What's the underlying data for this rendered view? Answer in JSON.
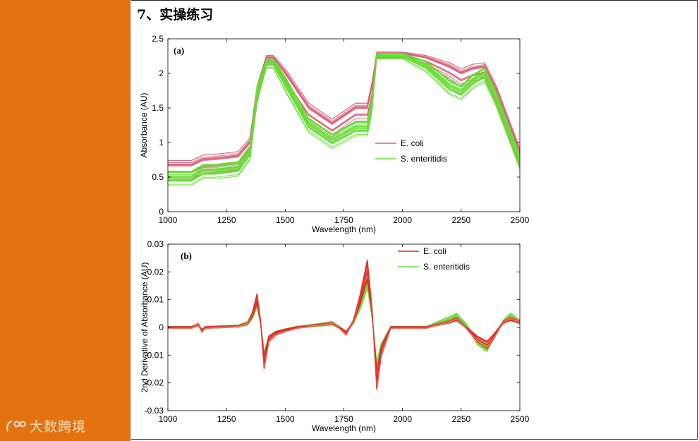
{
  "slide": {
    "title": "7、实操练习",
    "logo_text": "大数跨境",
    "sidebar_color": "#e3720f"
  },
  "chart_data": [
    {
      "type": "line",
      "panel_label": "(a)",
      "xlabel": "Wavelength (nm)",
      "ylabel": "Absorbance (AU)",
      "xlim": [
        1000,
        2500
      ],
      "ylim": [
        0,
        2.5
      ],
      "xticks": [
        1000,
        1250,
        1500,
        1750,
        2000,
        2250,
        2500
      ],
      "yticks": [
        0,
        0.5,
        1,
        1.5,
        2,
        2.5
      ],
      "ytick_labels": [
        "0",
        "0.5",
        "1",
        "1.5",
        "2",
        "2.5"
      ],
      "legend_position": "right",
      "x": [
        1000,
        1100,
        1150,
        1200,
        1300,
        1350,
        1380,
        1420,
        1450,
        1500,
        1600,
        1700,
        1800,
        1850,
        1870,
        1890,
        2000,
        2100,
        2200,
        2250,
        2300,
        2350,
        2400,
        2500
      ],
      "series": [
        {
          "name": "E. coli",
          "color": "#d9607a",
          "values": [
            0.62,
            0.62,
            0.7,
            0.71,
            0.75,
            0.95,
            1.7,
            2.2,
            2.2,
            1.95,
            1.45,
            1.22,
            1.45,
            1.45,
            1.75,
            2.27,
            2.27,
            2.2,
            2.05,
            1.95,
            2.02,
            2.05,
            1.7,
            0.8
          ],
          "spread": 0.14,
          "count": 14
        },
        {
          "name": "S. enteritidis",
          "color": "#66dd33",
          "values": [
            0.48,
            0.48,
            0.58,
            0.58,
            0.62,
            0.85,
            1.7,
            2.14,
            2.14,
            1.85,
            1.25,
            1.02,
            1.2,
            1.2,
            1.55,
            2.25,
            2.25,
            2.1,
            1.8,
            1.72,
            1.88,
            1.98,
            1.62,
            0.72
          ],
          "spread": 0.12,
          "count": 22
        }
      ]
    },
    {
      "type": "line",
      "panel_label": "(b)",
      "xlabel": "Wavelength (nm)",
      "ylabel": "2nd Derivative of Absorbance (AU)",
      "xlim": [
        1000,
        2500
      ],
      "ylim": [
        -0.03,
        0.03
      ],
      "xticks": [
        1000,
        1250,
        1500,
        1750,
        2000,
        2250,
        2500
      ],
      "yticks": [
        -0.03,
        -0.02,
        -0.01,
        0,
        0.01,
        0.02,
        0.03
      ],
      "ytick_labels": [
        "-0.03",
        "-0.02",
        "-0.01",
        "0",
        "0.01",
        "0.02",
        "0.03"
      ],
      "legend_position": "top-right",
      "x": [
        1000,
        1100,
        1130,
        1145,
        1160,
        1300,
        1340,
        1360,
        1380,
        1395,
        1410,
        1430,
        1460,
        1500,
        1550,
        1650,
        1700,
        1730,
        1760,
        1790,
        1820,
        1850,
        1870,
        1890,
        1910,
        1950,
        2000,
        2100,
        2200,
        2230,
        2270,
        2320,
        2360,
        2390,
        2430,
        2460,
        2500
      ],
      "series": [
        {
          "name": "E. coli",
          "color": "#e02a2a",
          "values": [
            0,
            0,
            0.001,
            -0.0012,
            0,
            0.0005,
            0.0015,
            0.0045,
            0.01,
            0.002,
            -0.012,
            -0.004,
            -0.002,
            -0.001,
            0,
            0.001,
            0.0015,
            0,
            -0.002,
            0.002,
            0.01,
            0.02,
            0.006,
            -0.018,
            -0.008,
            0,
            0,
            0,
            0.002,
            0.003,
            0,
            -0.004,
            -0.006,
            -0.003,
            0.002,
            0.003,
            0.002
          ],
          "spread": 0.0025,
          "count": 14
        },
        {
          "name": "S. enteritidis",
          "color": "#66dd33",
          "values": [
            0,
            0,
            0.001,
            -0.0012,
            0,
            0.0005,
            0.0015,
            0.0045,
            0.01,
            0.002,
            -0.0115,
            -0.004,
            -0.002,
            -0.001,
            0,
            0.001,
            0.0015,
            0,
            -0.002,
            0.002,
            0.009,
            0.019,
            0.005,
            -0.016,
            -0.007,
            0,
            0,
            0,
            0.003,
            0.004,
            0.001,
            -0.005,
            -0.007,
            -0.003,
            0.002,
            0.004,
            0.002
          ],
          "spread": 0.0025,
          "count": 18
        }
      ]
    }
  ]
}
